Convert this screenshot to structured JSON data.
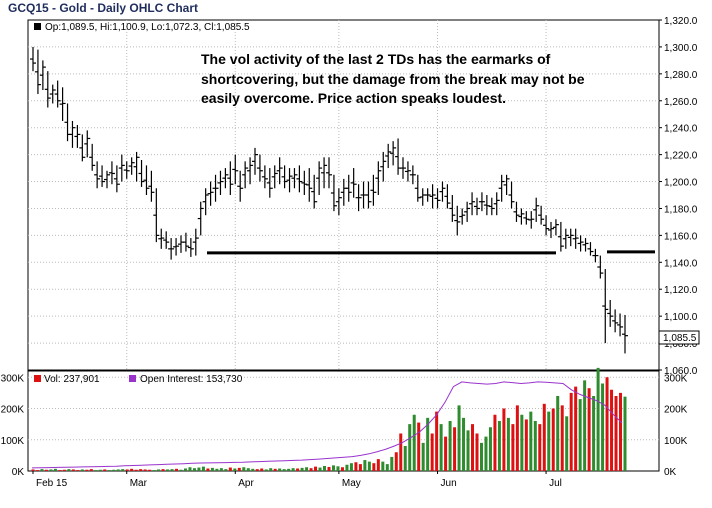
{
  "chart_title": "GCQ15 - Gold - Daily OHLC Chart",
  "annotation": "The vol activity of the last 2 TDs has the earmarks of shortcovering, but the damage from the break may not be easily overcome.  Price action speaks loudest.",
  "price_legend": "Op:1,089.5, Hi:1,100.9, Lo:1,072.3, Cl:1,085.5",
  "last_price_label": "1,085.5",
  "volume_legend": "Vol: 237,901",
  "oi_legend": "Open Interest: 153,730",
  "colors": {
    "price_bar": "#000000",
    "vol_up": "#2e8b2e",
    "vol_down": "#dd1111",
    "oi_line": "#9933cc",
    "title": "#1f2d5c",
    "grid": "#bbbbbb"
  },
  "chart_data": [
    {
      "type": "ohlc",
      "title": "GCQ15 - Gold - Daily OHLC Chart",
      "x_labels": [
        "Feb 15",
        "Mar",
        "Apr",
        "May",
        "Jun",
        "Jul"
      ],
      "y_ticks": [
        "1,060.0",
        "1,080.0",
        "1,100.0",
        "1,120.0",
        "1,140.0",
        "1,160.0",
        "1,180.0",
        "1,200.0",
        "1,220.0",
        "1,240.0",
        "1,260.0",
        "1,280.0",
        "1,300.0",
        "1,320.0"
      ],
      "ylim": [
        1060,
        1320
      ],
      "grid": true,
      "support_line_level": 1147,
      "bars": [
        {
          "date": "2015-02-02",
          "h": 1300,
          "l": 1282,
          "c": 1288
        },
        {
          "date": "2015-02-03",
          "h": 1298,
          "l": 1265,
          "c": 1272
        },
        {
          "date": "2015-02-04",
          "h": 1290,
          "l": 1268,
          "c": 1285
        },
        {
          "date": "2015-02-05",
          "h": 1282,
          "l": 1255,
          "c": 1262
        },
        {
          "date": "2015-02-06",
          "h": 1272,
          "l": 1258,
          "c": 1268
        },
        {
          "date": "2015-02-09",
          "h": 1275,
          "l": 1255,
          "c": 1260
        },
        {
          "date": "2015-02-10",
          "h": 1270,
          "l": 1245,
          "c": 1258
        },
        {
          "date": "2015-02-11",
          "h": 1258,
          "l": 1230,
          "c": 1235
        },
        {
          "date": "2015-02-12",
          "h": 1245,
          "l": 1225,
          "c": 1240
        },
        {
          "date": "2015-02-13",
          "h": 1242,
          "l": 1225,
          "c": 1235
        },
        {
          "date": "2015-02-17",
          "h": 1235,
          "l": 1215,
          "c": 1218
        },
        {
          "date": "2015-02-18",
          "h": 1238,
          "l": 1218,
          "c": 1232
        },
        {
          "date": "2015-02-19",
          "h": 1228,
          "l": 1208,
          "c": 1212
        },
        {
          "date": "2015-02-20",
          "h": 1215,
          "l": 1195,
          "c": 1202
        },
        {
          "date": "2015-02-23",
          "h": 1212,
          "l": 1196,
          "c": 1200
        },
        {
          "date": "2015-02-24",
          "h": 1208,
          "l": 1195,
          "c": 1205
        },
        {
          "date": "2015-02-25",
          "h": 1215,
          "l": 1198,
          "c": 1206
        },
        {
          "date": "2015-02-26",
          "h": 1212,
          "l": 1192,
          "c": 1198
        },
        {
          "date": "2015-02-27",
          "h": 1220,
          "l": 1200,
          "c": 1212
        },
        {
          "date": "2015-03-02",
          "h": 1215,
          "l": 1202,
          "c": 1208
        },
        {
          "date": "2015-03-03",
          "h": 1218,
          "l": 1205,
          "c": 1214
        },
        {
          "date": "2015-03-04",
          "h": 1222,
          "l": 1200,
          "c": 1218
        },
        {
          "date": "2015-03-05",
          "h": 1216,
          "l": 1196,
          "c": 1200
        },
        {
          "date": "2015-03-06",
          "h": 1212,
          "l": 1190,
          "c": 1195
        },
        {
          "date": "2015-03-09",
          "h": 1208,
          "l": 1185,
          "c": 1192
        },
        {
          "date": "2015-03-10",
          "h": 1195,
          "l": 1155,
          "c": 1160
        },
        {
          "date": "2015-03-11",
          "h": 1165,
          "l": 1150,
          "c": 1158
        },
        {
          "date": "2015-03-12",
          "h": 1163,
          "l": 1150,
          "c": 1155
        },
        {
          "date": "2015-03-13",
          "h": 1158,
          "l": 1142,
          "c": 1150
        },
        {
          "date": "2015-03-16",
          "h": 1158,
          "l": 1145,
          "c": 1152
        },
        {
          "date": "2015-03-17",
          "h": 1160,
          "l": 1147,
          "c": 1155
        },
        {
          "date": "2015-03-18",
          "h": 1162,
          "l": 1148,
          "c": 1152
        },
        {
          "date": "2015-03-19",
          "h": 1158,
          "l": 1144,
          "c": 1150
        },
        {
          "date": "2015-03-20",
          "h": 1165,
          "l": 1145,
          "c": 1158
        },
        {
          "date": "2015-03-23",
          "h": 1185,
          "l": 1160,
          "c": 1180
        },
        {
          "date": "2015-03-24",
          "h": 1195,
          "l": 1175,
          "c": 1190
        },
        {
          "date": "2015-03-25",
          "h": 1200,
          "l": 1182,
          "c": 1192
        },
        {
          "date": "2015-03-26",
          "h": 1205,
          "l": 1185,
          "c": 1195
        },
        {
          "date": "2015-03-27",
          "h": 1208,
          "l": 1190,
          "c": 1200
        },
        {
          "date": "2015-03-30",
          "h": 1210,
          "l": 1195,
          "c": 1205
        },
        {
          "date": "2015-03-31",
          "h": 1215,
          "l": 1190,
          "c": 1198
        },
        {
          "date": "2015-04-01",
          "h": 1220,
          "l": 1198,
          "c": 1208
        },
        {
          "date": "2015-04-02",
          "h": 1208,
          "l": 1185,
          "c": 1195
        },
        {
          "date": "2015-04-06",
          "h": 1215,
          "l": 1195,
          "c": 1210
        },
        {
          "date": "2015-04-07",
          "h": 1218,
          "l": 1198,
          "c": 1212
        },
        {
          "date": "2015-04-08",
          "h": 1225,
          "l": 1205,
          "c": 1220
        },
        {
          "date": "2015-04-09",
          "h": 1220,
          "l": 1200,
          "c": 1208
        },
        {
          "date": "2015-04-10",
          "h": 1212,
          "l": 1195,
          "c": 1202
        },
        {
          "date": "2015-04-13",
          "h": 1210,
          "l": 1188,
          "c": 1195
        },
        {
          "date": "2015-04-14",
          "h": 1212,
          "l": 1195,
          "c": 1206
        },
        {
          "date": "2015-04-15",
          "h": 1218,
          "l": 1198,
          "c": 1210
        },
        {
          "date": "2015-04-16",
          "h": 1212,
          "l": 1195,
          "c": 1200
        },
        {
          "date": "2015-04-17",
          "h": 1210,
          "l": 1192,
          "c": 1204
        },
        {
          "date": "2015-04-20",
          "h": 1210,
          "l": 1195,
          "c": 1205
        },
        {
          "date": "2015-04-21",
          "h": 1212,
          "l": 1192,
          "c": 1200
        },
        {
          "date": "2015-04-22",
          "h": 1208,
          "l": 1190,
          "c": 1198
        },
        {
          "date": "2015-04-23",
          "h": 1210,
          "l": 1185,
          "c": 1195
        },
        {
          "date": "2015-04-24",
          "h": 1205,
          "l": 1180,
          "c": 1185
        },
        {
          "date": "2015-04-27",
          "h": 1215,
          "l": 1190,
          "c": 1210
        },
        {
          "date": "2015-04-28",
          "h": 1218,
          "l": 1195,
          "c": 1212
        },
        {
          "date": "2015-04-29",
          "h": 1218,
          "l": 1195,
          "c": 1205
        },
        {
          "date": "2015-04-30",
          "h": 1205,
          "l": 1178,
          "c": 1182
        },
        {
          "date": "2015-05-01",
          "h": 1195,
          "l": 1175,
          "c": 1188
        },
        {
          "date": "2015-05-04",
          "h": 1202,
          "l": 1182,
          "c": 1195
        },
        {
          "date": "2015-05-05",
          "h": 1205,
          "l": 1185,
          "c": 1192
        },
        {
          "date": "2015-05-06",
          "h": 1210,
          "l": 1188,
          "c": 1198
        },
        {
          "date": "2015-05-07",
          "h": 1198,
          "l": 1178,
          "c": 1188
        },
        {
          "date": "2015-05-08",
          "h": 1200,
          "l": 1180,
          "c": 1190
        },
        {
          "date": "2015-05-11",
          "h": 1200,
          "l": 1180,
          "c": 1185
        },
        {
          "date": "2015-05-12",
          "h": 1205,
          "l": 1182,
          "c": 1192
        },
        {
          "date": "2015-05-13",
          "h": 1215,
          "l": 1190,
          "c": 1208
        },
        {
          "date": "2015-05-14",
          "h": 1222,
          "l": 1200,
          "c": 1215
        },
        {
          "date": "2015-05-15",
          "h": 1228,
          "l": 1210,
          "c": 1222
        },
        {
          "date": "2015-05-18",
          "h": 1230,
          "l": 1212,
          "c": 1225
        },
        {
          "date": "2015-05-19",
          "h": 1232,
          "l": 1205,
          "c": 1210
        },
        {
          "date": "2015-05-20",
          "h": 1218,
          "l": 1202,
          "c": 1210
        },
        {
          "date": "2015-05-21",
          "h": 1215,
          "l": 1200,
          "c": 1208
        },
        {
          "date": "2015-05-22",
          "h": 1212,
          "l": 1198,
          "c": 1205
        },
        {
          "date": "2015-05-26",
          "h": 1205,
          "l": 1185,
          "c": 1188
        },
        {
          "date": "2015-05-27",
          "h": 1195,
          "l": 1182,
          "c": 1190
        },
        {
          "date": "2015-05-28",
          "h": 1195,
          "l": 1185,
          "c": 1190
        },
        {
          "date": "2015-05-29",
          "h": 1198,
          "l": 1180,
          "c": 1190
        },
        {
          "date": "2015-06-01",
          "h": 1195,
          "l": 1180,
          "c": 1186
        },
        {
          "date": "2015-06-02",
          "h": 1200,
          "l": 1185,
          "c": 1195
        },
        {
          "date": "2015-06-03",
          "h": 1198,
          "l": 1180,
          "c": 1184
        },
        {
          "date": "2015-06-04",
          "h": 1190,
          "l": 1170,
          "c": 1175
        },
        {
          "date": "2015-06-05",
          "h": 1182,
          "l": 1160,
          "c": 1170
        },
        {
          "date": "2015-06-08",
          "h": 1180,
          "l": 1168,
          "c": 1175
        },
        {
          "date": "2015-06-09",
          "h": 1185,
          "l": 1170,
          "c": 1180
        },
        {
          "date": "2015-06-10",
          "h": 1192,
          "l": 1175,
          "c": 1185
        },
        {
          "date": "2015-06-11",
          "h": 1188,
          "l": 1175,
          "c": 1180
        },
        {
          "date": "2015-06-12",
          "h": 1192,
          "l": 1178,
          "c": 1185
        },
        {
          "date": "2015-06-15",
          "h": 1190,
          "l": 1175,
          "c": 1182
        },
        {
          "date": "2015-06-16",
          "h": 1188,
          "l": 1175,
          "c": 1180
        },
        {
          "date": "2015-06-17",
          "h": 1192,
          "l": 1175,
          "c": 1186
        },
        {
          "date": "2015-06-18",
          "h": 1205,
          "l": 1185,
          "c": 1200
        },
        {
          "date": "2015-06-19",
          "h": 1205,
          "l": 1190,
          "c": 1202
        },
        {
          "date": "2015-06-22",
          "h": 1200,
          "l": 1180,
          "c": 1185
        },
        {
          "date": "2015-06-23",
          "h": 1185,
          "l": 1170,
          "c": 1175
        },
        {
          "date": "2015-06-24",
          "h": 1180,
          "l": 1168,
          "c": 1176
        },
        {
          "date": "2015-06-25",
          "h": 1178,
          "l": 1168,
          "c": 1172
        },
        {
          "date": "2015-06-26",
          "h": 1178,
          "l": 1165,
          "c": 1172
        },
        {
          "date": "2015-06-29",
          "h": 1188,
          "l": 1170,
          "c": 1182
        },
        {
          "date": "2015-06-30",
          "h": 1182,
          "l": 1168,
          "c": 1172
        },
        {
          "date": "2015-07-01",
          "h": 1175,
          "l": 1160,
          "c": 1165
        },
        {
          "date": "2015-07-02",
          "h": 1170,
          "l": 1158,
          "c": 1165
        },
        {
          "date": "2015-07-06",
          "h": 1172,
          "l": 1160,
          "c": 1168
        },
        {
          "date": "2015-07-07",
          "h": 1170,
          "l": 1148,
          "c": 1152
        },
        {
          "date": "2015-07-08",
          "h": 1165,
          "l": 1150,
          "c": 1160
        },
        {
          "date": "2015-07-09",
          "h": 1165,
          "l": 1152,
          "c": 1160
        },
        {
          "date": "2015-07-10",
          "h": 1165,
          "l": 1150,
          "c": 1158
        },
        {
          "date": "2015-07-13",
          "h": 1160,
          "l": 1148,
          "c": 1155
        },
        {
          "date": "2015-07-14",
          "h": 1158,
          "l": 1148,
          "c": 1154
        },
        {
          "date": "2015-07-15",
          "h": 1155,
          "l": 1145,
          "c": 1148
        },
        {
          "date": "2015-07-16",
          "h": 1150,
          "l": 1140,
          "c": 1145
        },
        {
          "date": "2015-07-17",
          "h": 1145,
          "l": 1128,
          "c": 1132
        },
        {
          "date": "2015-07-20",
          "h": 1135,
          "l": 1080,
          "c": 1105
        },
        {
          "date": "2015-07-21",
          "h": 1112,
          "l": 1092,
          "c": 1100
        },
        {
          "date": "2015-07-22",
          "h": 1105,
          "l": 1088,
          "c": 1095
        },
        {
          "date": "2015-07-23",
          "h": 1102,
          "l": 1085,
          "c": 1092
        },
        {
          "date": "2015-07-24",
          "h": 1100.9,
          "l": 1072.3,
          "c": 1085.5
        }
      ]
    },
    {
      "type": "bar",
      "title": "",
      "legend": [
        "Vol: 237,901",
        "Open Interest: 153,730"
      ],
      "y_ticks_left": [
        "0K",
        "100K",
        "200K",
        "300K"
      ],
      "y_ticks_right": [
        "0K",
        "100K",
        "200K",
        "300K"
      ],
      "ylim": [
        0,
        320000
      ],
      "series": [
        {
          "name": "Vol: 237,901",
          "kind": "bar",
          "values": [
            5000,
            3000,
            6000,
            4000,
            5000,
            7000,
            3000,
            4000,
            6000,
            5000,
            3000,
            5000,
            4000,
            6000,
            3000,
            4000,
            5000,
            3000,
            4000,
            5000,
            6000,
            5000,
            7000,
            4000,
            6000,
            5000,
            4000,
            3000,
            5000,
            6000,
            5000,
            6000,
            7000,
            4000,
            8000,
            12000,
            9000,
            11000,
            14000,
            8000,
            10000,
            7000,
            9000,
            6000,
            11000,
            8000,
            10000,
            12000,
            9000,
            7000,
            6000,
            8000,
            5000,
            9000,
            7000,
            8000,
            6000,
            7000,
            9000,
            8000,
            10000,
            12000,
            9000,
            14000,
            11000,
            16000,
            13000,
            18000,
            15000,
            12000,
            20000,
            25000,
            28000,
            22000,
            35000,
            30000,
            25000,
            38000,
            30000,
            22000,
            45000,
            60000,
            120000,
            80000,
            150000,
            180000,
            155000,
            90000,
            170000,
            120000,
            190000,
            150000,
            110000,
            160000,
            140000,
            210000,
            170000,
            130000,
            150000,
            120000,
            90000,
            110000,
            140000,
            180000,
            160000,
            200000,
            170000,
            150000,
            210000,
            180000,
            165000,
            190000,
            160000,
            150000,
            215000,
            190000,
            200000,
            240000,
            210000,
            175000,
            250000,
            270000,
            230000,
            290000,
            265000,
            240000,
            330000,
            280000,
            300000,
            260000,
            240000,
            250000,
            237901
          ],
          "up_down": "DDUDUUDDUDDUDDUUDUUUUDDDDDDUUDUUDUUUUUUDUUUUDUDUUUDDUUDUUUUDUUDDUUDUUDUUDDUUDDUUUDDUUUDUUDDUDUDUUUDDUUUDUDUDDUDUUDDUDUDUDDUUDUUUDDDDUDUUUDDUUDUUDDDUUUUUDUDDUUDDDDUD"
        },
        {
          "name": "Open Interest: 153,730",
          "kind": "line",
          "values": [
            10000,
            10500,
            11000,
            11500,
            12000,
            12500,
            13000,
            13500,
            14000,
            14800,
            15500,
            16500,
            17500,
            18500,
            19500,
            20500,
            21500,
            22500,
            23500,
            24500,
            25500,
            26000,
            26500,
            27000,
            27500,
            28000,
            29000,
            30000,
            31000,
            32000,
            33000,
            34000,
            35000,
            36500,
            38000,
            40000,
            42000,
            44000,
            46000,
            50000,
            55000,
            62000,
            70000,
            80000,
            92000,
            108000,
            125000,
            150000,
            180000,
            220000,
            270000,
            285000,
            282000,
            280000,
            278000,
            280000,
            285000,
            283000,
            280000,
            282000,
            285000,
            284000,
            282000,
            280000,
            260000,
            245000,
            235000,
            225000,
            210000,
            180000,
            153730
          ]
        }
      ]
    }
  ]
}
